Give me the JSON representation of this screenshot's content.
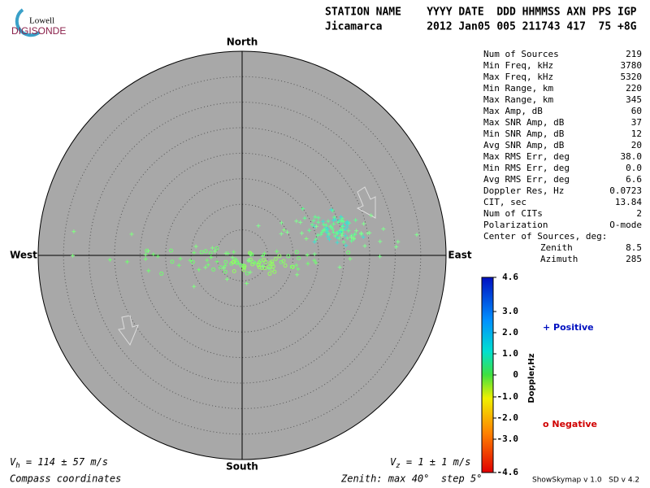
{
  "logo": {
    "top": "Lowell",
    "bottom": "DIGISONDE"
  },
  "header": {
    "line1": "STATION NAME    YYYY DATE  DDD HHMMSS AXN PPS IGP",
    "line2": "Jicamarca       2012 Jan05 005 211743 417  75 +8G"
  },
  "directions": {
    "north": "North",
    "south": "South",
    "west": "West",
    "east": "East"
  },
  "stats": [
    [
      "Num of Sources",
      "219"
    ],
    [
      "Min Freq, kHz",
      "3780"
    ],
    [
      "Max Freq, kHz",
      "5320"
    ],
    [
      "Min Range, km",
      "220"
    ],
    [
      "Max Range, km",
      "345"
    ],
    [
      "Max Amp, dB",
      "60"
    ],
    [
      "Max SNR Amp, dB",
      "37"
    ],
    [
      "Min SNR Amp, dB",
      "12"
    ],
    [
      "Avg SNR Amp, dB",
      "20"
    ],
    [
      "Max RMS Err, deg",
      "38.0"
    ],
    [
      "Min RMS Err, deg",
      "0.0"
    ],
    [
      "Avg RMS Err, deg",
      "6.6"
    ],
    [
      "Doppler Res, Hz",
      "0.0723"
    ],
    [
      "CIT, sec",
      "13.84"
    ],
    [
      "Num of CITs",
      "2"
    ],
    [
      "Polarization",
      "O-mode"
    ]
  ],
  "center": {
    "title": "Center of Sources, deg:",
    "rows": [
      [
        "Zenith",
        "8.5"
      ],
      [
        "Azimuth",
        "285"
      ]
    ]
  },
  "colorbar": {
    "title": "Doppler,Hz",
    "ticks": [
      "4.6",
      "3.0",
      "2.0",
      "1.0",
      "0",
      "-1.0",
      "-2.0",
      "-3.0",
      "-4.6"
    ]
  },
  "legend": {
    "positive": "+ Positive",
    "negative": "o Negative"
  },
  "footer": {
    "vh": {
      "symbol": "V",
      "sub": "h",
      "text": " = 114 ± 57 m/s"
    },
    "vz": {
      "symbol": "V",
      "sub": "z",
      "text": " = 1 ± 1 m/s"
    },
    "coords": "Compass coordinates",
    "zenith": "Zenith: max 40°  step 5°",
    "version": "ShowSkymap v 1.0   SD v 4.2"
  }
}
